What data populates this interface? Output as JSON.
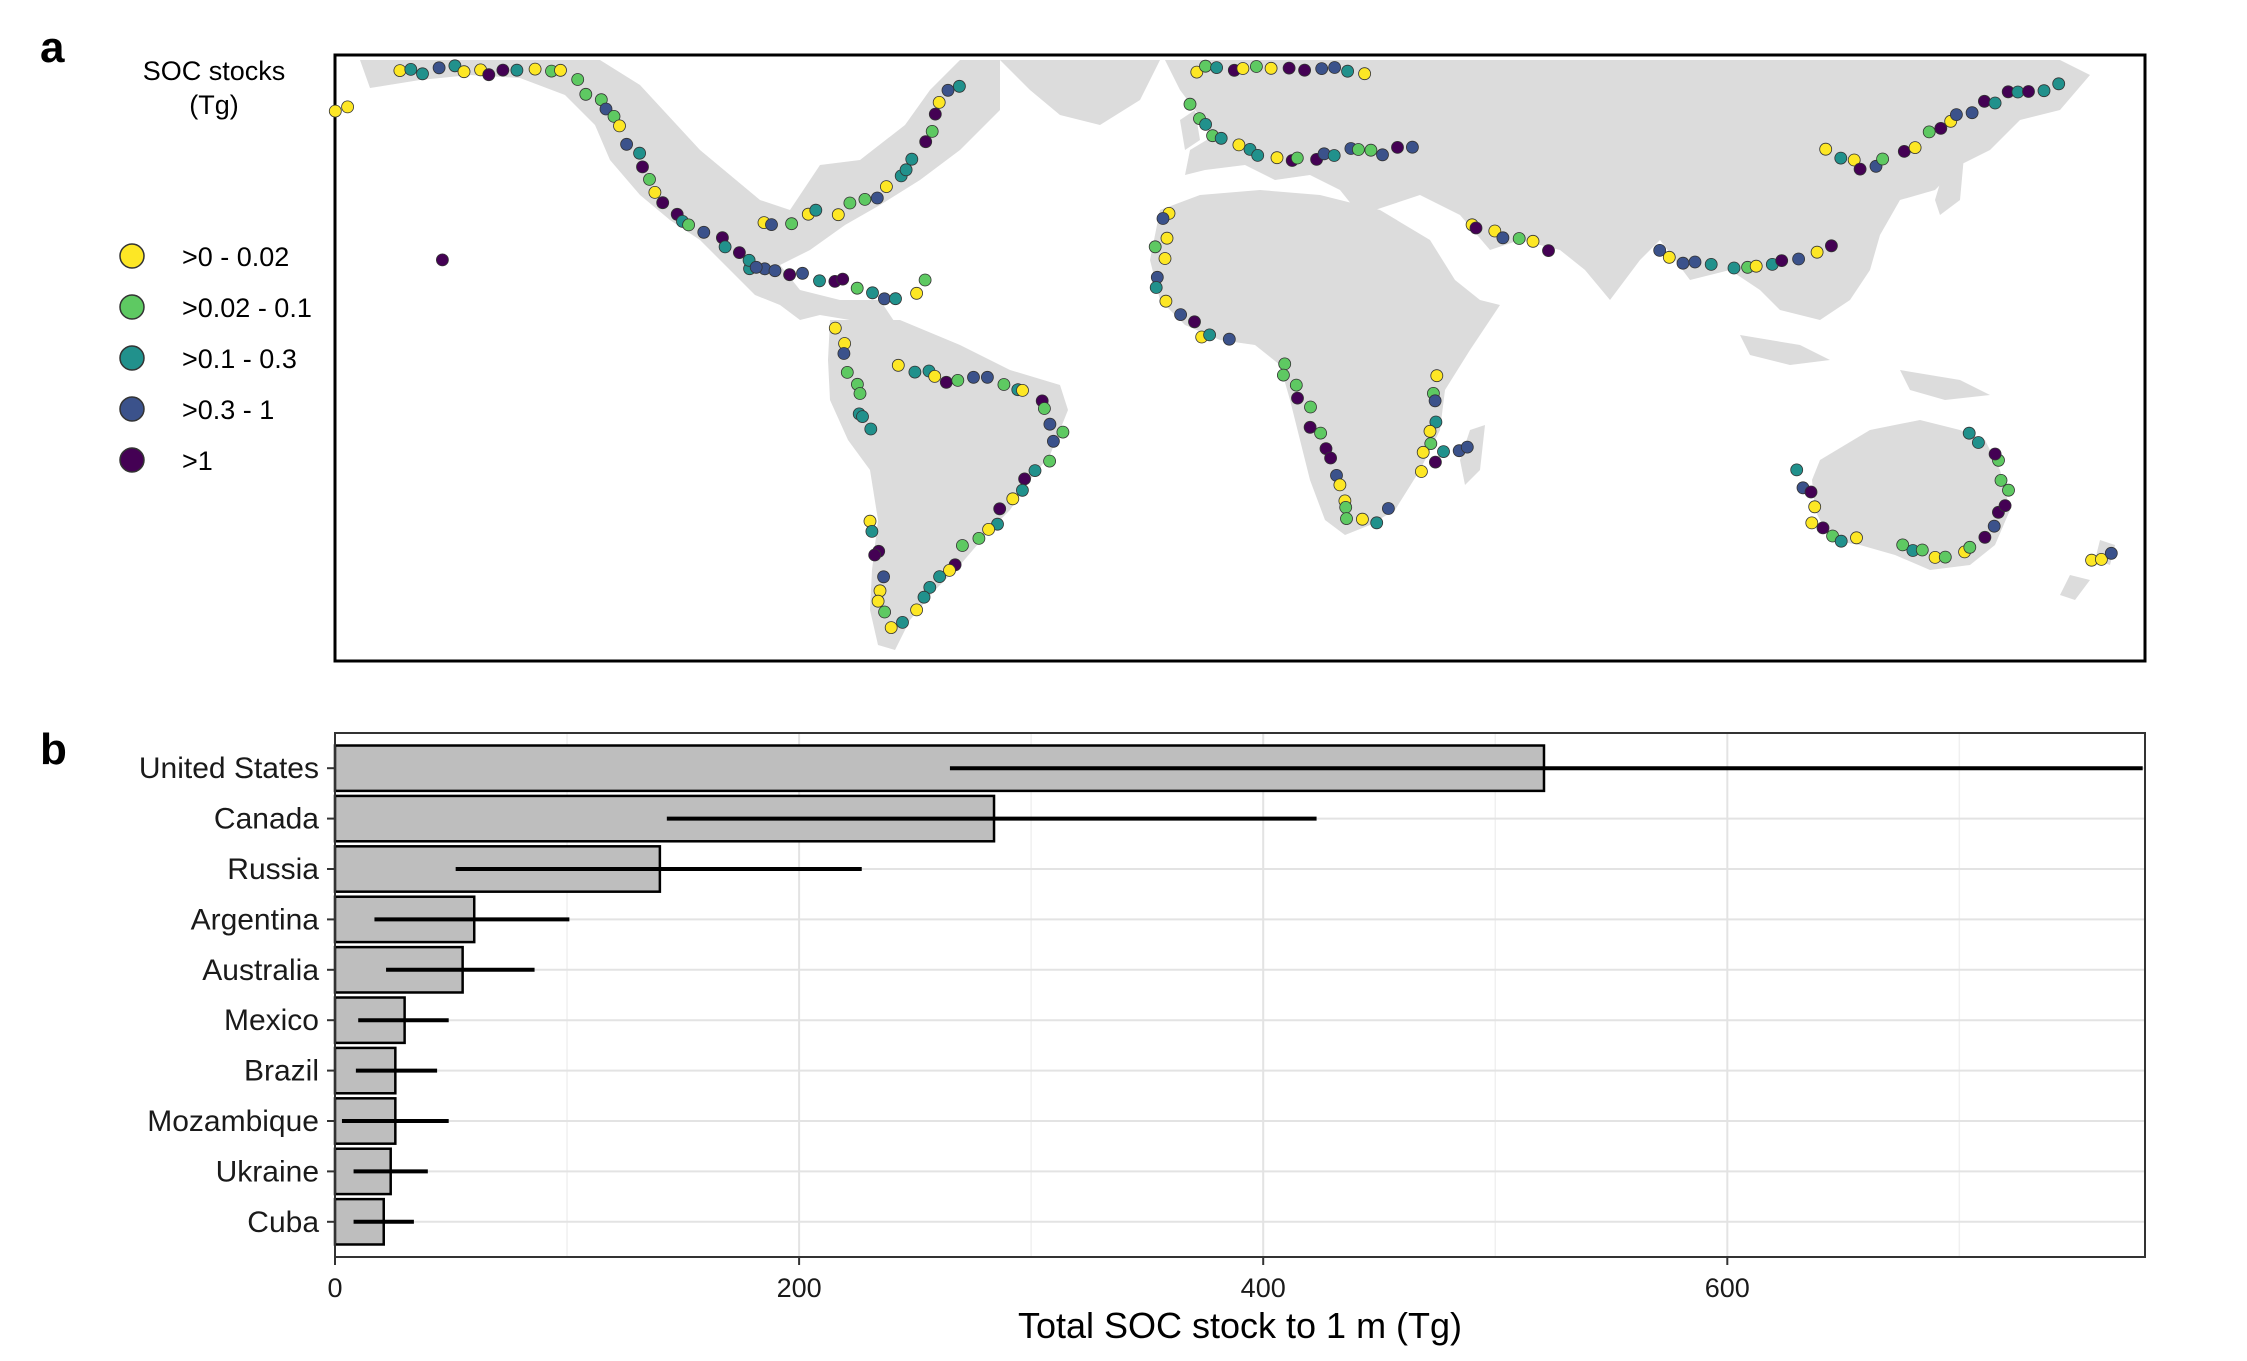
{
  "panel_a": {
    "letter": "a",
    "legend_title_line1": "SOC stocks",
    "legend_title_line2": "(Tg)",
    "legend": [
      {
        "label": ">0 - 0.02",
        "color": "#FDE725"
      },
      {
        "label": ">0.02 - 0.1",
        "color": "#5EC962"
      },
      {
        "label": ">0.1 - 0.3",
        "color": "#21918C"
      },
      {
        "label": ">0.3 - 1",
        "color": "#3B528B"
      },
      {
        "label": ">1",
        "color": "#440154"
      }
    ],
    "land_color": "#DCDCDC"
  },
  "panel_b": {
    "letter": "b"
  },
  "chart_data": {
    "type": "bar",
    "orientation": "horizontal",
    "categories": [
      "United States",
      "Canada",
      "Russia",
      "Argentina",
      "Australia",
      "Mexico",
      "Brazil",
      "Mozambique",
      "Ukraine",
      "Cuba"
    ],
    "values": [
      521,
      284,
      140,
      60,
      55,
      30,
      26,
      26,
      24,
      21
    ],
    "error_low": [
      265,
      143,
      52,
      17,
      22,
      10,
      9,
      3,
      8,
      8
    ],
    "error_high": [
      779,
      423,
      227,
      101,
      86,
      49,
      44,
      49,
      40,
      34
    ],
    "xlabel": "Total SOC stock to 1 m (Tg)",
    "ylabel": "",
    "xlim": [
      0,
      780
    ],
    "xticks": [
      0,
      200,
      400,
      600
    ],
    "grid": true,
    "bar_color": "#BEBEBE",
    "bar_edge_color": "#000000"
  }
}
